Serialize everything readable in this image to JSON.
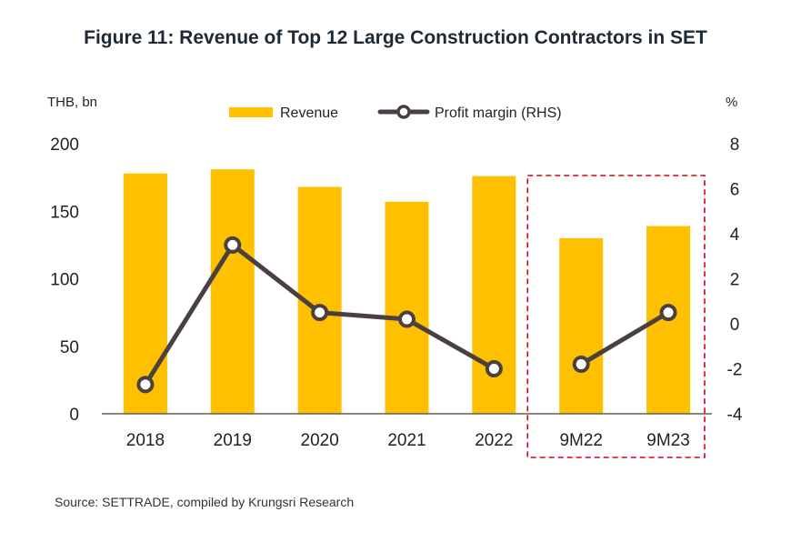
{
  "chart_data": {
    "type": "bar",
    "title": "Figure 11: Revenue of Top 12 Large Construction Contractors in SET",
    "categories": [
      "2018",
      "2019",
      "2020",
      "2021",
      "2022",
      "9M22",
      "9M23"
    ],
    "left_axis": {
      "unit": "THB, bn",
      "range": [
        0,
        200
      ],
      "ticks": [
        "200",
        "150",
        "100",
        "50",
        "0"
      ]
    },
    "right_axis": {
      "unit": "%",
      "range": [
        -4,
        8
      ],
      "ticks": [
        "8",
        "6",
        "4",
        "2",
        "0",
        "-2",
        "-4"
      ]
    },
    "series": [
      {
        "name": "Revenue",
        "type": "bar",
        "axis": "left",
        "color": "#FFC000",
        "values": [
          178,
          181,
          168,
          157,
          176,
          130,
          139
        ]
      },
      {
        "name": "Profit margin (RHS)",
        "type": "line",
        "axis": "right",
        "color": "#4a403f",
        "values": [
          -2.7,
          3.5,
          0.5,
          0.2,
          -2.0,
          -1.8,
          0.5
        ]
      }
    ],
    "highlight": {
      "categories": [
        "9M22",
        "9M23"
      ],
      "style": "dashed",
      "color": "#d0021b"
    },
    "grid": false,
    "legend": "top-center",
    "source": "Source: SETTRADE, compiled by Krungsri Research"
  }
}
